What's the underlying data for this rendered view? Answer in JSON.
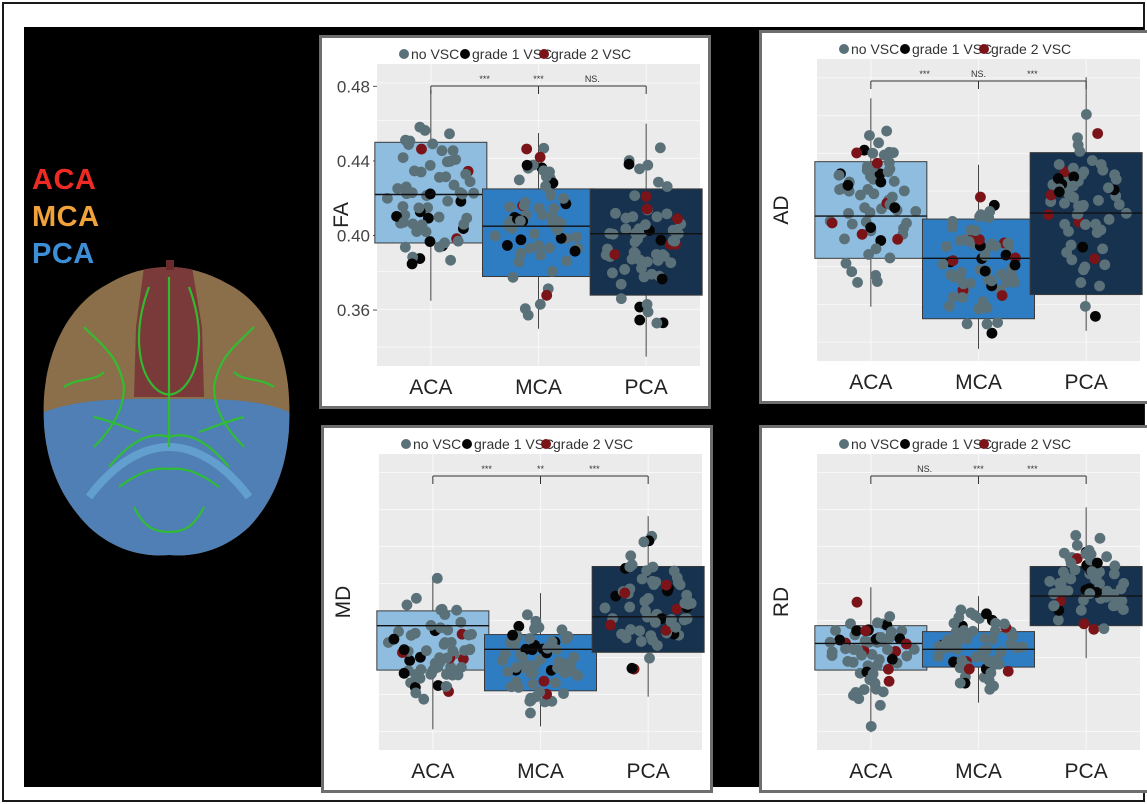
{
  "figure": {
    "region_labels": [
      {
        "text": "ACA",
        "color": "#ee2a24"
      },
      {
        "text": "MCA",
        "color": "#f2a23a"
      },
      {
        "text": "PCA",
        "color": "#3c8fd6"
      }
    ],
    "colors": {
      "no_vsc": "#5b7179",
      "grade1": "#050505",
      "grade2": "#7a1418",
      "box_aca": "#8fbde0",
      "box_mca": "#2e7dc2",
      "box_pca": "#17324f",
      "panel_bg": "#ebebeb",
      "panel_border": "#6e6e6e"
    }
  },
  "chart_data": [
    {
      "type": "box",
      "ylabel": "FA",
      "categories": [
        "ACA",
        "MCA",
        "PCA"
      ],
      "yticks": [
        "0.48",
        "0.44",
        "0.40",
        "0.36"
      ],
      "ylim": [
        0.33,
        0.492
      ],
      "legend": [
        "no VSC",
        "grade 1 VSC",
        "grade 2 VSC"
      ],
      "significance": [
        "***",
        "***",
        "NS."
      ],
      "boxes": [
        {
          "q1": 0.396,
          "median": 0.422,
          "q3": 0.45,
          "min": 0.365,
          "max": 0.478
        },
        {
          "q1": 0.378,
          "median": 0.405,
          "q3": 0.425,
          "min": 0.35,
          "max": 0.455
        },
        {
          "q1": 0.368,
          "median": 0.401,
          "q3": 0.425,
          "min": 0.335,
          "max": 0.46
        }
      ]
    },
    {
      "type": "box",
      "ylabel": "AD",
      "categories": [
        "ACA",
        "MCA",
        "PCA"
      ],
      "yticks": [],
      "ylim": [
        0,
        1
      ],
      "legend": [
        "no VSC",
        "grade 1 VSC",
        "grade 2 VSC"
      ],
      "significance": [
        "***",
        "NS.",
        "***"
      ],
      "boxes": [
        {
          "q1": 0.34,
          "median": 0.48,
          "q3": 0.66,
          "min": 0.18,
          "max": 0.87
        },
        {
          "q1": 0.14,
          "median": 0.34,
          "q3": 0.47,
          "min": 0.04,
          "max": 0.65
        },
        {
          "q1": 0.22,
          "median": 0.49,
          "q3": 0.69,
          "min": 0.1,
          "max": 0.94
        }
      ]
    },
    {
      "type": "box",
      "ylabel": "MD",
      "categories": [
        "ACA",
        "MCA",
        "PCA"
      ],
      "yticks": [],
      "ylim": [
        0,
        1
      ],
      "legend": [
        "no VSC",
        "grade 1 VSC",
        "grade 2 VSC"
      ],
      "significance": [
        "***",
        "**",
        "***"
      ],
      "boxes": [
        {
          "q1": 0.27,
          "median": 0.42,
          "q3": 0.47,
          "min": 0.07,
          "max": 0.58
        },
        {
          "q1": 0.2,
          "median": 0.34,
          "q3": 0.39,
          "min": 0.08,
          "max": 0.53
        },
        {
          "q1": 0.33,
          "median": 0.45,
          "q3": 0.62,
          "min": 0.18,
          "max": 0.79
        }
      ]
    },
    {
      "type": "box",
      "ylabel": "RD",
      "categories": [
        "ACA",
        "MCA",
        "PCA"
      ],
      "yticks": [],
      "ylim": [
        0,
        1
      ],
      "legend": [
        "no VSC",
        "grade 1 VSC",
        "grade 2 VSC"
      ],
      "significance": [
        "NS.",
        "***",
        "***"
      ],
      "boxes": [
        {
          "q1": 0.27,
          "median": 0.36,
          "q3": 0.42,
          "min": 0.06,
          "max": 0.55
        },
        {
          "q1": 0.28,
          "median": 0.34,
          "q3": 0.4,
          "min": 0.16,
          "max": 0.52
        },
        {
          "q1": 0.42,
          "median": 0.52,
          "q3": 0.62,
          "min": 0.31,
          "max": 0.82
        }
      ]
    }
  ]
}
